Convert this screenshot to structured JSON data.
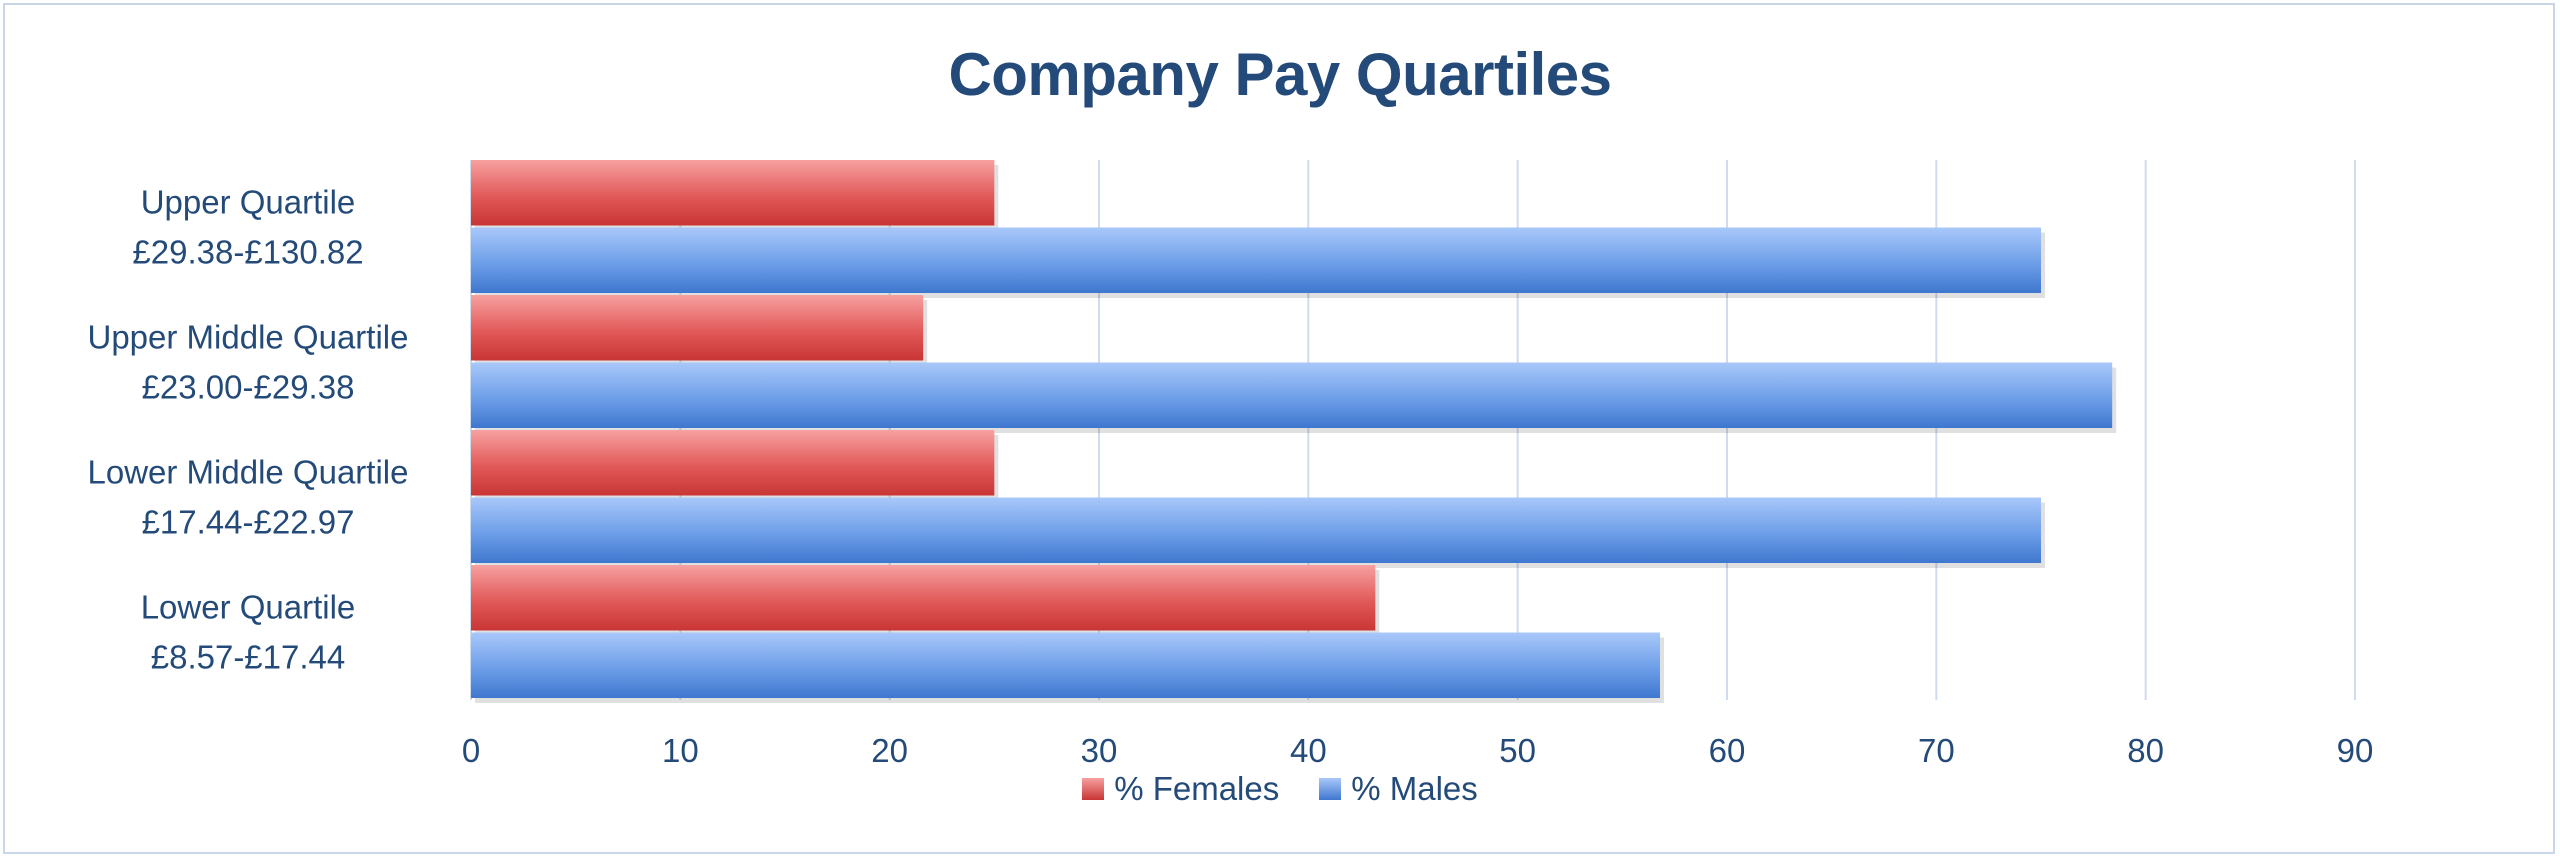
{
  "chart_data": {
    "type": "bar",
    "orientation": "horizontal",
    "title": "Company Pay Quartiles",
    "categories": [
      {
        "line1": "Upper Quartile",
        "line2": "£29.38-£130.82"
      },
      {
        "line1": "Upper Middle Quartile",
        "line2": "£23.00-£29.38"
      },
      {
        "line1": "Lower Middle Quartile",
        "line2": "£17.44-£22.97"
      },
      {
        "line1": "Lower Quartile",
        "line2": "£8.57-£17.44"
      }
    ],
    "series": [
      {
        "name": "% Females",
        "color": "#e04848",
        "values": [
          25,
          21.6,
          25,
          43.2
        ]
      },
      {
        "name": "% Males",
        "color": "#5b8fe0",
        "values": [
          75,
          78.4,
          75,
          56.8
        ]
      }
    ],
    "xlim": [
      0,
      90
    ],
    "xticks": [
      "0",
      "10",
      "20",
      "30",
      "40",
      "50",
      "60",
      "70",
      "80",
      "90"
    ],
    "grid": true,
    "legend_position": "bottom"
  }
}
